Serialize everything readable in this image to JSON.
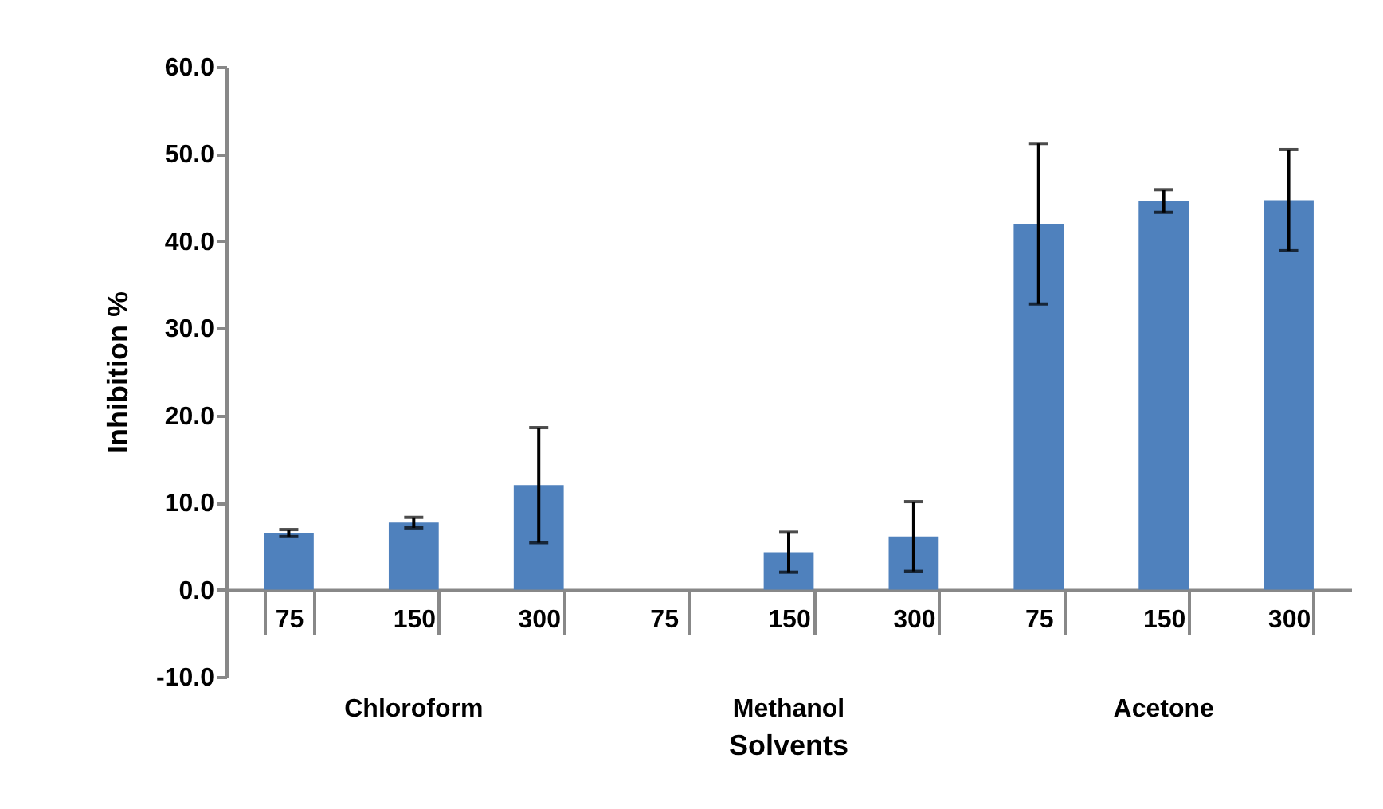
{
  "chart_data": {
    "type": "bar",
    "xlabel": "Solvents",
    "ylabel": "Inhibition %",
    "categories": [
      "75",
      "150",
      "300",
      "75",
      "150",
      "300",
      "75",
      "150",
      "300"
    ],
    "values": [
      6.5,
      7.7,
      12.0,
      0,
      4.3,
      6.1,
      42.0,
      44.6,
      44.7
    ],
    "errors": [
      0.4,
      0.6,
      6.6,
      null,
      2.3,
      4.0,
      9.2,
      1.3,
      5.8
    ],
    "color": "#4f81bd",
    "annotations": [
      "Chloroform",
      "Methanol",
      "Acetone"
    ],
    "ylim": [
      -10,
      60
    ],
    "yticks": [
      {
        "value": -10,
        "label": "-10.0"
      },
      {
        "value": 0,
        "label": "0.0"
      },
      {
        "value": 10,
        "label": "10.0"
      },
      {
        "value": 20,
        "label": "20.0"
      },
      {
        "value": 30,
        "label": "30.0"
      },
      {
        "value": 40,
        "label": "40.0"
      },
      {
        "value": 50,
        "label": "50.0"
      },
      {
        "value": 60,
        "label": "60.0"
      }
    ],
    "grid": false
  }
}
